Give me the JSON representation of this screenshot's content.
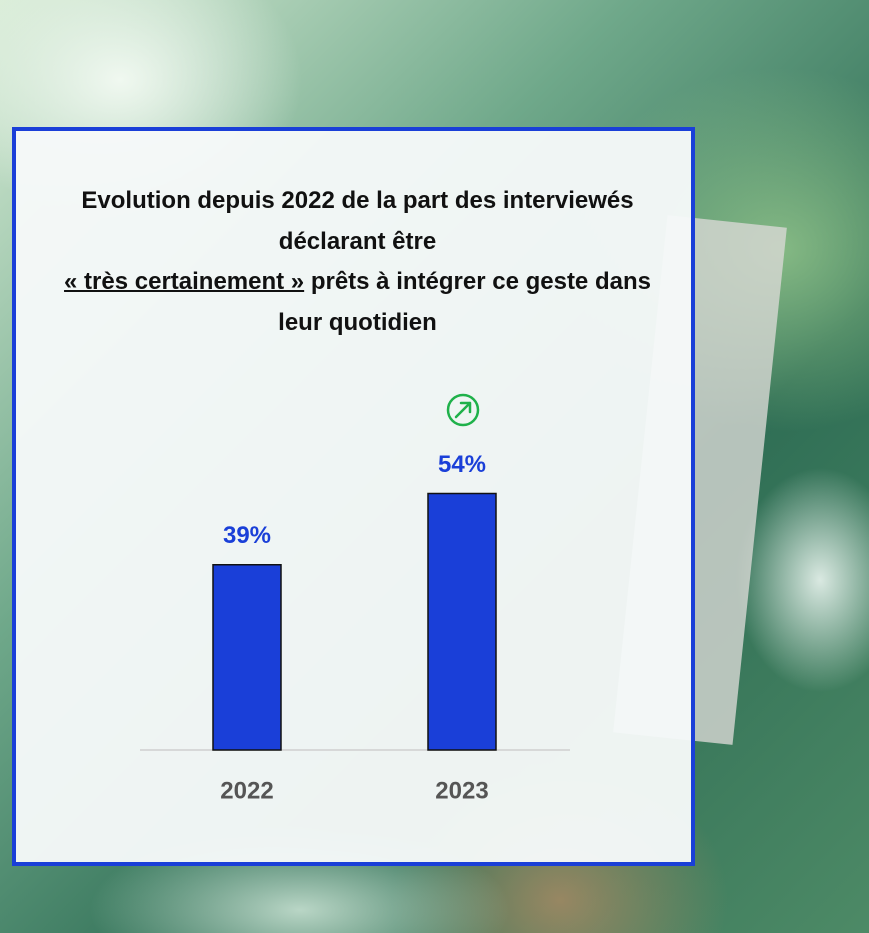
{
  "chart_data": {
    "type": "bar",
    "title_parts": [
      "Evolution depuis 2022 de la part des interviewés déclarant être",
      "« très certainement »",
      "prêts à intégrer ce geste dans leur quotidien"
    ],
    "categories": [
      "2022",
      "2023"
    ],
    "values": [
      39,
      54
    ],
    "value_labels": [
      "39%",
      "54%"
    ],
    "color": "#1a3fd8",
    "ylim": [
      0,
      100
    ]
  }
}
